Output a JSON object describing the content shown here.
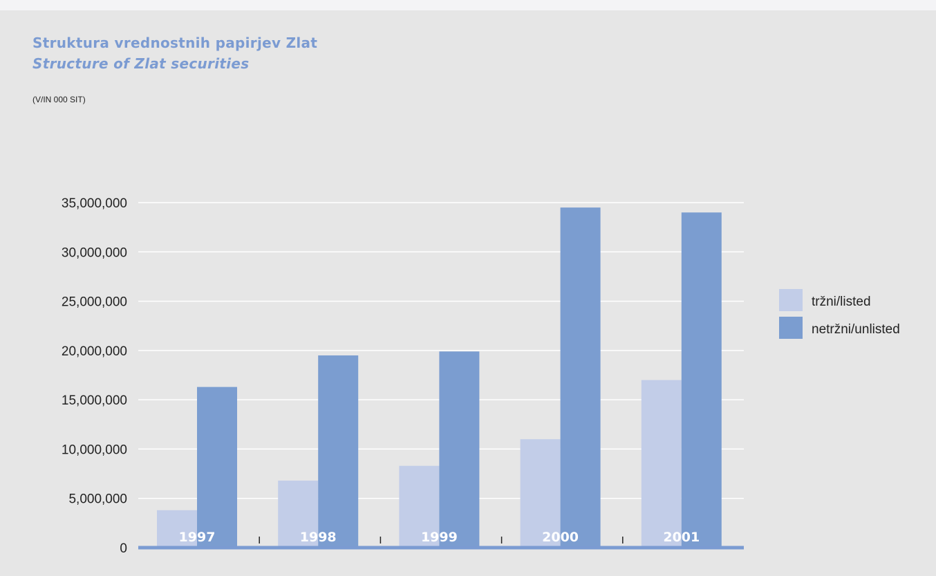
{
  "titles": {
    "primary": "Struktura vrednostnih papirjev Zlat",
    "secondary": "Structure of Zlat securities",
    "unit": "(V/IN 000 SIT)"
  },
  "colors": {
    "background": "#e6e6e6",
    "page": "#f4f4f6",
    "title": "#7b9bd2",
    "listed": "#c2cde8",
    "unlisted": "#7b9dd0",
    "axis": "#7b9bd2",
    "grid": "#ffffff"
  },
  "chart_data": {
    "type": "bar",
    "categories": [
      "1997",
      "1998",
      "1999",
      "2000",
      "2001"
    ],
    "series": [
      {
        "name": "tržni/listed",
        "color": "#c2cde8",
        "values": [
          3800000,
          6800000,
          8300000,
          11000000,
          17000000
        ]
      },
      {
        "name": "netržni/unlisted",
        "color": "#7b9dd0",
        "values": [
          16300000,
          19500000,
          19900000,
          34500000,
          34000000
        ]
      }
    ],
    "ylim": [
      0,
      35000000
    ],
    "yticks": [
      0,
      5000000,
      10000000,
      15000000,
      20000000,
      25000000,
      30000000,
      35000000
    ],
    "ytick_labels": [
      "0",
      "5,000,000",
      "10,000,000",
      "15,000,000",
      "20,000,000",
      "25,000,000",
      "30,000,000",
      "35,000,000"
    ],
    "grid": true,
    "legend": "right"
  }
}
